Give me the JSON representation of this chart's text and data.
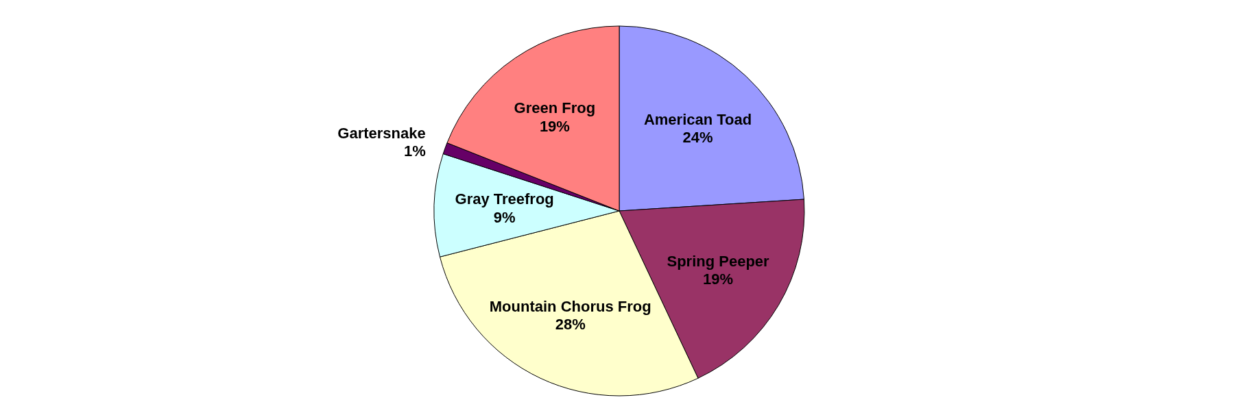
{
  "chart_data": {
    "type": "pie",
    "categories": [
      "American Toad",
      "Spring Peeper",
      "Mountain Chorus Frog",
      "Gray Treefrog",
      "Gartersnake",
      "Green Frog"
    ],
    "values": [
      24,
      19,
      28,
      9,
      1,
      19
    ],
    "value_labels": [
      "24%",
      "19%",
      "28%",
      "9%",
      "1%",
      "19%"
    ],
    "colors": [
      "#9999ff",
      "#993366",
      "#ffffcc",
      "#ccffff",
      "#660066",
      "#ff8080"
    ],
    "legend": false
  }
}
